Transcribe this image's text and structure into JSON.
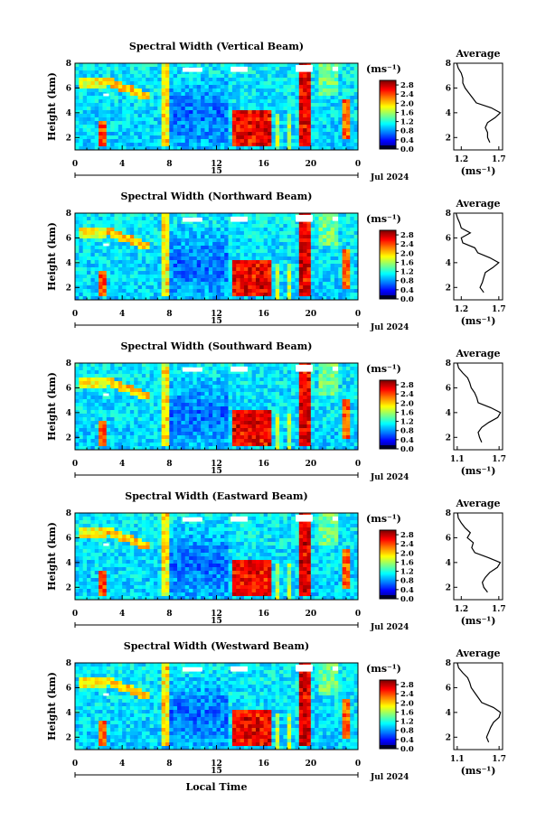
{
  "chart_data": [
    {
      "type": "heatmap",
      "title": "Spectral Width (Vertical Beam)",
      "ylabel": "Height (km)",
      "x_ticks": [
        "0",
        "4",
        "8",
        "12",
        "16",
        "20",
        "0"
      ],
      "y_ticks": [
        "2",
        "4",
        "6",
        "8"
      ],
      "xlim": [
        0,
        24
      ],
      "ylim": [
        1,
        8
      ],
      "date_day": "15",
      "date_label": "Jul 2024",
      "colorbar": {
        "unit": "(ms⁻¹)",
        "ticks": [
          "0.0",
          "0.4",
          "0.8",
          "1.2",
          "1.6",
          "2.0",
          "2.4",
          "2.8"
        ],
        "range": [
          0,
          3
        ]
      },
      "average": {
        "title": "Average",
        "unit": "(ms⁻¹)",
        "x_ticks": [
          "1.2",
          "1.7"
        ],
        "xlim": [
          1.1,
          1.75
        ],
        "y_ticks": [
          "2",
          "4",
          "6",
          "8"
        ],
        "height": [
          1.6,
          2.0,
          2.4,
          2.8,
          3.2,
          3.6,
          4.0,
          4.4,
          4.8,
          5.2,
          5.6,
          6.0,
          6.4,
          6.8,
          7.2,
          7.6,
          8.0
        ],
        "value": [
          1.58,
          1.55,
          1.55,
          1.52,
          1.55,
          1.65,
          1.72,
          1.6,
          1.4,
          1.35,
          1.3,
          1.25,
          1.22,
          1.22,
          1.2,
          1.16,
          1.14
        ]
      }
    },
    {
      "type": "heatmap",
      "title": "Spectral Width (Northward Beam)",
      "ylabel": "Height (km)",
      "x_ticks": [
        "0",
        "4",
        "8",
        "12",
        "16",
        "20",
        "0"
      ],
      "y_ticks": [
        "2",
        "4",
        "6",
        "8"
      ],
      "xlim": [
        0,
        24
      ],
      "ylim": [
        1,
        8
      ],
      "date_day": "15",
      "date_label": "Jul 2024",
      "colorbar": {
        "unit": "(ms⁻¹)",
        "ticks": [
          "0.0",
          "0.4",
          "0.8",
          "1.2",
          "1.6",
          "2.0",
          "2.4",
          "2.8"
        ],
        "range": [
          0,
          3
        ]
      },
      "average": {
        "title": "Average",
        "unit": "(ms⁻¹)",
        "x_ticks": [
          "1.2",
          "1.7"
        ],
        "xlim": [
          1.1,
          1.75
        ],
        "y_ticks": [
          "2",
          "4",
          "6",
          "8"
        ],
        "height": [
          1.6,
          2.0,
          2.4,
          2.8,
          3.2,
          3.6,
          4.0,
          4.4,
          4.8,
          5.2,
          5.6,
          6.0,
          6.4,
          6.8,
          7.2,
          7.6,
          8.0
        ],
        "value": [
          1.5,
          1.45,
          1.48,
          1.5,
          1.52,
          1.62,
          1.7,
          1.58,
          1.42,
          1.38,
          1.22,
          1.2,
          1.32,
          1.2,
          1.18,
          1.15,
          1.13
        ]
      }
    },
    {
      "type": "heatmap",
      "title": "Spectral Width (Southward Beam)",
      "ylabel": "Height (km)",
      "x_ticks": [
        "0",
        "4",
        "8",
        "12",
        "16",
        "20",
        "0"
      ],
      "y_ticks": [
        "2",
        "4",
        "6",
        "8"
      ],
      "xlim": [
        0,
        24
      ],
      "ylim": [
        1,
        8
      ],
      "date_day": "15",
      "date_label": "Jul 2024",
      "colorbar": {
        "unit": "(ms⁻¹)",
        "ticks": [
          "0.0",
          "0.4",
          "0.8",
          "1.2",
          "1.6",
          "2.0",
          "2.4",
          "2.8"
        ],
        "range": [
          0,
          3
        ]
      },
      "average": {
        "title": "Average",
        "unit": "(ms⁻¹)",
        "x_ticks": [
          "1.1",
          "1.7"
        ],
        "xlim": [
          1.05,
          1.75
        ],
        "y_ticks": [
          "2",
          "4",
          "6",
          "8"
        ],
        "height": [
          1.6,
          2.0,
          2.4,
          2.8,
          3.2,
          3.6,
          4.0,
          4.4,
          4.8,
          5.2,
          5.6,
          6.0,
          6.4,
          6.8,
          7.2,
          7.6,
          8.0
        ],
        "value": [
          1.45,
          1.42,
          1.4,
          1.45,
          1.55,
          1.68,
          1.72,
          1.58,
          1.4,
          1.38,
          1.35,
          1.3,
          1.28,
          1.25,
          1.18,
          1.12,
          1.1
        ]
      }
    },
    {
      "type": "heatmap",
      "title": "Spectral Width (Eastward Beam)",
      "ylabel": "Height (km)",
      "x_ticks": [
        "0",
        "4",
        "8",
        "12",
        "16",
        "20",
        "0"
      ],
      "y_ticks": [
        "2",
        "4",
        "6",
        "8"
      ],
      "xlim": [
        0,
        24
      ],
      "ylim": [
        1,
        8
      ],
      "date_day": "15",
      "date_label": "Jul 2024",
      "colorbar": {
        "unit": "(ms⁻¹)",
        "ticks": [
          "0.0",
          "0.4",
          "0.8",
          "1.2",
          "1.6",
          "2.0",
          "2.4",
          "2.8"
        ],
        "range": [
          0,
          3
        ]
      },
      "average": {
        "title": "Average",
        "unit": "(ms⁻¹)",
        "x_ticks": [
          "1.2",
          "1.7"
        ],
        "xlim": [
          1.1,
          1.75
        ],
        "y_ticks": [
          "2",
          "4",
          "6",
          "8"
        ],
        "height": [
          1.6,
          2.0,
          2.4,
          2.8,
          3.2,
          3.6,
          4.0,
          4.4,
          4.8,
          5.2,
          5.6,
          6.0,
          6.4,
          6.8,
          7.2,
          7.6,
          8.0
        ],
        "value": [
          1.55,
          1.5,
          1.48,
          1.52,
          1.58,
          1.68,
          1.72,
          1.56,
          1.38,
          1.34,
          1.36,
          1.28,
          1.32,
          1.25,
          1.2,
          1.16,
          1.15
        ]
      }
    },
    {
      "type": "heatmap",
      "title": "Spectral Width (Westward Beam)",
      "ylabel": "Height (km)",
      "xlabel": "Local Time",
      "x_ticks": [
        "0",
        "4",
        "8",
        "12",
        "16",
        "20",
        "0"
      ],
      "y_ticks": [
        "2",
        "4",
        "6",
        "8"
      ],
      "xlim": [
        0,
        24
      ],
      "ylim": [
        1,
        8
      ],
      "date_day": "15",
      "date_label": "Jul 2024",
      "colorbar": {
        "unit": "(ms⁻¹)",
        "ticks": [
          "0.0",
          "0.4",
          "0.8",
          "1.2",
          "1.6",
          "2.0",
          "2.4",
          "2.8"
        ],
        "range": [
          0,
          3
        ]
      },
      "average": {
        "title": "Average",
        "unit": "(ms⁻¹)",
        "x_ticks": [
          "1.1",
          "1.7"
        ],
        "xlim": [
          1.05,
          1.75
        ],
        "y_ticks": [
          "2",
          "4",
          "6",
          "8"
        ],
        "height": [
          1.6,
          2.0,
          2.4,
          2.8,
          3.2,
          3.6,
          4.0,
          4.4,
          4.8,
          5.2,
          5.6,
          6.0,
          6.4,
          6.8,
          7.2,
          7.6,
          8.0
        ],
        "value": [
          1.55,
          1.52,
          1.55,
          1.58,
          1.62,
          1.7,
          1.72,
          1.62,
          1.45,
          1.4,
          1.35,
          1.3,
          1.28,
          1.25,
          1.18,
          1.12,
          1.1
        ]
      }
    }
  ]
}
